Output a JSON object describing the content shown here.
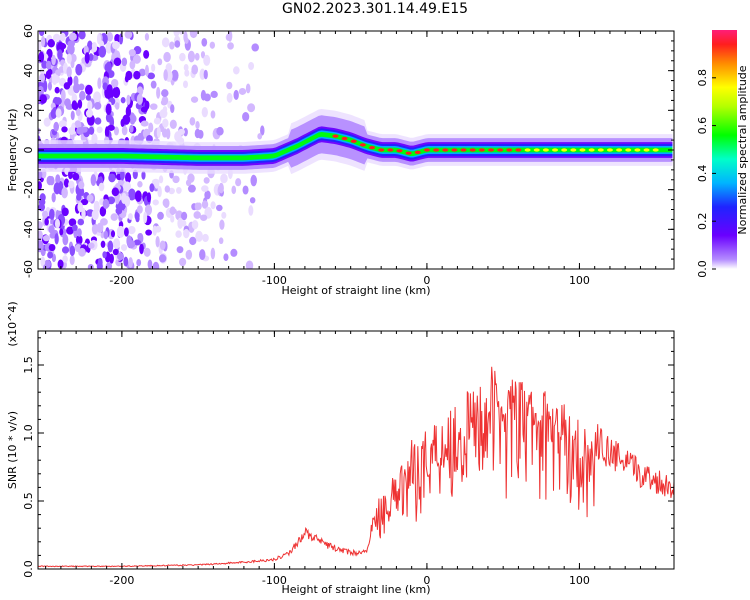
{
  "title": "GN02.2023.301.14.49.E15",
  "chart_data": [
    {
      "type": "heatmap",
      "xlabel": "Height of straight line (km)",
      "ylabel": "Frequency (Hz)",
      "xlim": [
        -255,
        162
      ],
      "ylim": [
        -60,
        60
      ],
      "xticks": [
        -200,
        -100,
        0,
        100
      ],
      "yticks": [
        -60,
        -40,
        -20,
        0,
        20,
        40,
        60
      ],
      "colorbar": {
        "label": "Normalized spectral amplitude",
        "range": [
          0,
          1
        ],
        "ticks": [
          "0.0",
          "0.2",
          "0.4",
          "0.6",
          "0.8"
        ]
      },
      "ridge": {
        "x": [
          -255,
          -200,
          -150,
          -120,
          -100,
          -85,
          -70,
          -60,
          -50,
          -40,
          -30,
          -20,
          -10,
          0,
          50,
          100,
          162
        ],
        "y": [
          -3,
          -3,
          -4,
          -4,
          -3,
          2,
          8,
          7,
          5,
          2,
          0,
          0,
          -2,
          0,
          0,
          0,
          0
        ]
      },
      "grid": false
    },
    {
      "type": "line",
      "xlabel": "Height of straight line (km)",
      "ylabel": "SNR (10 * v/v)",
      "y_multiplier": "(x10^4)",
      "xlim": [
        -255,
        162
      ],
      "ylim": [
        0,
        1.75
      ],
      "xticks": [
        -200,
        -100,
        0,
        100
      ],
      "yticks": [
        "0.0",
        "0.5",
        "1.0",
        "1.5"
      ],
      "color": "#ee3333",
      "envelope": {
        "x": [
          -255,
          -200,
          -150,
          -120,
          -100,
          -90,
          -80,
          -70,
          -60,
          -50,
          -40,
          -30,
          -20,
          -10,
          0,
          10,
          20,
          30,
          40,
          50,
          60,
          70,
          80,
          90,
          100,
          110,
          120,
          130,
          140,
          150,
          162
        ],
        "y": [
          0.02,
          0.02,
          0.03,
          0.05,
          0.07,
          0.12,
          0.27,
          0.2,
          0.15,
          0.12,
          0.12,
          0.6,
          0.7,
          0.95,
          1.05,
          1.2,
          1.25,
          1.35,
          1.5,
          1.45,
          1.4,
          1.35,
          1.3,
          1.22,
          1.1,
          0.95,
          0.85,
          0.78,
          0.7,
          0.65,
          0.6
        ]
      },
      "grid": false
    }
  ]
}
